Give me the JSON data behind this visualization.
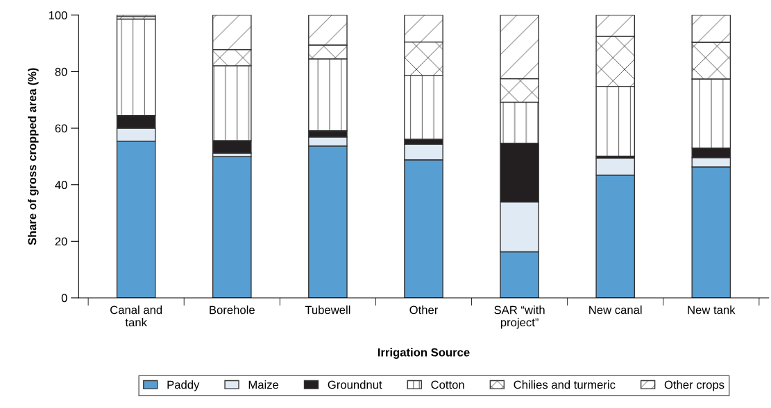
{
  "chart_data": {
    "type": "bar",
    "stacked": true,
    "xlabel": "Irrigation Source",
    "ylabel": "Share of gross cropped area (%)",
    "categories": [
      "Canal and\ntank",
      "Borehole",
      "Tubewell",
      "Other",
      "SAR “with\nproject”",
      "New canal",
      "New tank"
    ],
    "series": [
      {
        "name": "Paddy",
        "color": "#579fd2",
        "values": [
          55.4,
          50.0,
          53.7,
          48.8,
          16.3,
          43.4,
          46.3
        ]
      },
      {
        "name": "Maize",
        "color": "#e0eaf4",
        "values": [
          4.6,
          1.2,
          3.2,
          5.5,
          17.6,
          6.0,
          3.3
        ]
      },
      {
        "name": "Groundnut",
        "color": "#231f20",
        "values": [
          4.5,
          4.4,
          2.2,
          1.8,
          20.8,
          0.7,
          3.4
        ]
      },
      {
        "name": "Cotton",
        "color": "#ffffff",
        "values": [
          34.1,
          26.5,
          25.4,
          22.5,
          14.5,
          24.7,
          24.4
        ]
      },
      {
        "name": "Chilies and turmeric",
        "color": "#ffffff",
        "values": [
          0.9,
          5.7,
          4.9,
          11.9,
          8.3,
          17.7,
          13.0
        ]
      },
      {
        "name": "Other crops",
        "color": "#ffffff",
        "values": [
          0.5,
          12.2,
          10.6,
          9.5,
          22.5,
          7.5,
          9.6
        ]
      }
    ],
    "ylim": [
      0,
      100
    ],
    "yticks": [
      0,
      20,
      40,
      60,
      80,
      100
    ],
    "grid": false,
    "legend": "bottom"
  }
}
